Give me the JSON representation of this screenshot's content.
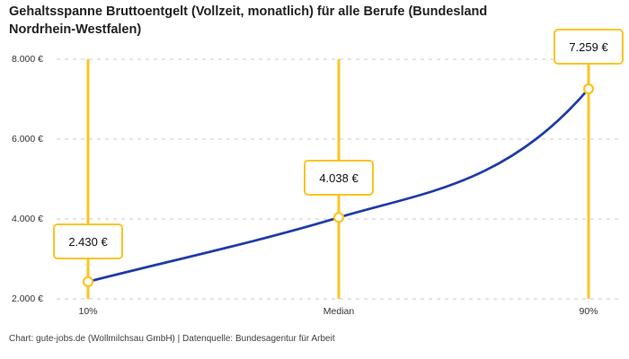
{
  "title": "Gehaltsspanne Bruttoentgelt (Vollzeit, monatlich) für alle Berufe (Bundesland Nordrhein-Westfalen)",
  "footer": "Chart: gute-jobs.de (Wollmilchsau GmbH) | Datenquelle: Bundesagentur für Arbeit",
  "chart_data": {
    "type": "line",
    "title": "Gehaltsspanne Bruttoentgelt (Vollzeit, monatlich) für alle Berufe (Bundesland Nordrhein-Westfalen)",
    "categories": [
      "10%",
      "Median",
      "90%"
    ],
    "values": [
      2430,
      4038,
      7259
    ],
    "value_labels": [
      "2.430 €",
      "4.038 €",
      "7.259 €"
    ],
    "ylim": [
      2000,
      8000
    ],
    "ytick_values": [
      2000,
      4000,
      6000,
      8000
    ],
    "ytick_labels": [
      "2.000 €",
      "4.000 €",
      "6.000 €",
      "8.000 €"
    ],
    "xlabel": "",
    "ylabel": "",
    "legend": "none",
    "grid": "horizontal-dashed",
    "colors": {
      "line": "#1e3ca8",
      "highlight": "#fcc422",
      "grid": "#cbcbcb",
      "text": "#333333",
      "marker_fill": "#ffffff"
    }
  }
}
